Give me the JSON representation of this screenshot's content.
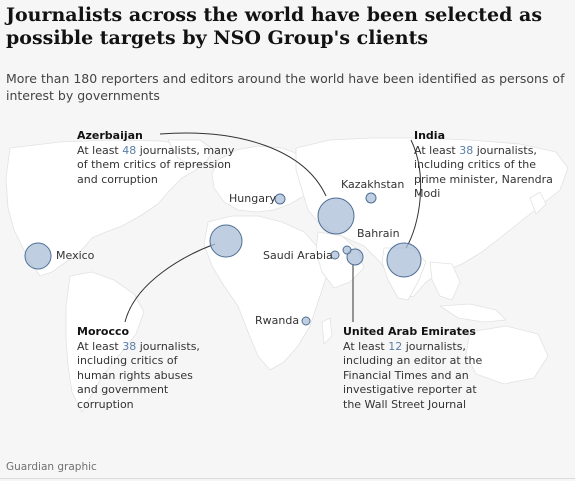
{
  "header": {
    "title": "Journalists across the world have been selected as possible targets by NSO Group's clients",
    "subtitle": "More than 180 reporters and editors around the world have been identified as persons of interest by governments"
  },
  "colors": {
    "land": "#ffffff",
    "water": "#f6f6f6",
    "circle_fill": "#a9bed6",
    "circle_stroke": "#4f6f95",
    "highlight": "#5a7fa8"
  },
  "countries": [
    {
      "name": "Mexico",
      "journalists": null,
      "size": "large"
    },
    {
      "name": "Hungary",
      "journalists": null,
      "size": "small"
    },
    {
      "name": "Kazakhstan",
      "journalists": null,
      "size": "small"
    },
    {
      "name": "Bahrain",
      "journalists": null,
      "size": "small"
    },
    {
      "name": "Saudi Arabia",
      "journalists": null,
      "size": "small"
    },
    {
      "name": "Rwanda",
      "journalists": null,
      "size": "small"
    },
    {
      "name": "Azerbaijan",
      "journalists": 48,
      "size": "large"
    },
    {
      "name": "Morocco",
      "journalists": 38,
      "size": "large"
    },
    {
      "name": "India",
      "journalists": 38,
      "size": "large"
    },
    {
      "name": "United Arab Emirates",
      "journalists": 12,
      "size": "medium"
    }
  ],
  "callouts": {
    "azerbaijan": {
      "name": "Azerbaijan",
      "prefix": "At least",
      "number": "48",
      "suffix": "journalists, many of them critics of repression and corruption"
    },
    "india": {
      "name": "India",
      "prefix": "At least",
      "number": "38",
      "suffix": "journalists, including critics of the prime minister, Narendra Modi"
    },
    "morocco": {
      "name": "Morocco",
      "prefix": "At least",
      "number": "38",
      "suffix": "journalists, including critics of human rights abuses and government corruption"
    },
    "uae": {
      "name": "United Arab Emirates",
      "prefix": "At least",
      "number": "12",
      "suffix": "journalists, including an editor at the Financial Times and an investigative reporter at the Wall Street Journal"
    }
  },
  "source": "Guardian graphic"
}
